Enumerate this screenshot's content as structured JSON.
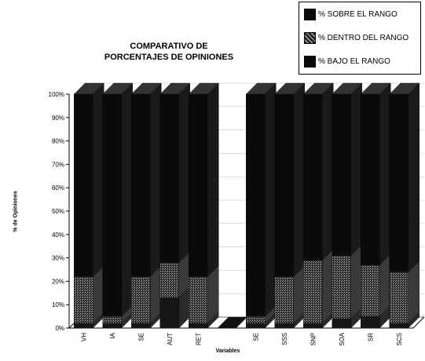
{
  "chart_data": {
    "type": "bar",
    "stacked": true,
    "percent_stacked": true,
    "three_d": true,
    "title_lines": [
      "COMPARATIVO DE",
      "PORCENTAJES DE OPINIONES"
    ],
    "xlabel": "Variables",
    "ylabel": "% de Opiniones",
    "ylim": [
      0,
      100
    ],
    "yticks": [
      "0%",
      "10%",
      "20%",
      "30%",
      "40%",
      "50%",
      "60%",
      "70%",
      "80%",
      "90%",
      "100%"
    ],
    "categories": [
      "VH",
      "IA",
      "SE",
      "AUT",
      "RET",
      "",
      "SE",
      "SSS",
      "SNP",
      "SOA",
      "SR",
      "SCS"
    ],
    "series": [
      {
        "name": "% BAJO EL RANGO",
        "values": [
          2,
          2,
          2,
          13,
          2,
          0,
          2,
          2,
          2,
          4,
          5,
          2
        ]
      },
      {
        "name": "% DENTRO DEL RANGO",
        "values": [
          20,
          3,
          20,
          15,
          20,
          0,
          3,
          20,
          27,
          27,
          22,
          22
        ]
      },
      {
        "name": "% SOBRE EL RANGO",
        "values": [
          78,
          95,
          78,
          72,
          78,
          0,
          95,
          78,
          71,
          69,
          73,
          76
        ]
      }
    ],
    "legend": {
      "position": "top-right",
      "order": [
        "% SOBRE EL RANGO",
        "% DENTRO DEL RANGO",
        "% BAJO EL RANGO"
      ]
    },
    "colors": {
      "% SOBRE EL RANGO": "#0a0a0a",
      "% DENTRO DEL RANGO": "#8a8a8a",
      "% BAJO EL RANGO": "#b8b8b8"
    }
  }
}
